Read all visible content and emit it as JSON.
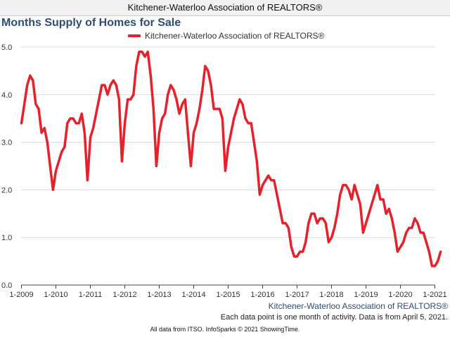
{
  "header": {
    "title": "Kitchener-Waterloo Association of REALTORS®"
  },
  "chart_data": {
    "type": "line",
    "title": "Months Supply of Homes for Sale",
    "xlabel": "",
    "ylabel": "",
    "ylim": [
      0,
      5
    ],
    "yticks": [
      "0.0",
      "1.0",
      "2.0",
      "3.0",
      "4.0",
      "5.0"
    ],
    "xticks": [
      "1-2009",
      "1-2010",
      "1-2011",
      "1-2012",
      "1-2013",
      "1-2014",
      "1-2015",
      "1-2016",
      "1-2017",
      "1-2018",
      "1-2019",
      "1-2020",
      "1-2021"
    ],
    "x_start": "1-2009",
    "x_end": "3-2021",
    "grid": "horizontal",
    "legend": "top-center",
    "series": [
      {
        "name": "Kitchener-Waterloo Association of REALTORS®",
        "color": "#e8202a",
        "values": [
          3.4,
          3.8,
          4.2,
          4.4,
          4.3,
          3.8,
          3.7,
          3.2,
          3.3,
          3.0,
          2.5,
          2.0,
          2.4,
          2.6,
          2.8,
          2.9,
          3.4,
          3.5,
          3.5,
          3.4,
          3.4,
          3.6,
          3.2,
          2.2,
          3.1,
          3.3,
          3.6,
          3.9,
          4.2,
          4.2,
          4.0,
          4.2,
          4.3,
          4.2,
          3.9,
          2.6,
          3.4,
          3.9,
          3.9,
          4.0,
          4.6,
          4.9,
          4.9,
          4.8,
          4.9,
          4.4,
          3.7,
          2.5,
          3.2,
          3.5,
          3.6,
          4.0,
          4.2,
          4.1,
          3.9,
          3.6,
          3.8,
          3.9,
          3.2,
          2.5,
          3.2,
          3.4,
          3.7,
          4.1,
          4.6,
          4.5,
          4.2,
          3.7,
          3.7,
          3.7,
          3.5,
          2.4,
          2.9,
          3.2,
          3.5,
          3.7,
          3.9,
          3.8,
          3.5,
          3.4,
          3.4,
          3.0,
          2.6,
          1.9,
          2.1,
          2.2,
          2.3,
          2.2,
          2.2,
          1.9,
          1.6,
          1.3,
          1.3,
          1.2,
          0.8,
          0.6,
          0.6,
          0.7,
          0.7,
          0.9,
          1.3,
          1.5,
          1.5,
          1.3,
          1.4,
          1.4,
          1.3,
          0.9,
          1.0,
          1.2,
          1.5,
          1.9,
          2.1,
          2.1,
          2.0,
          1.8,
          2.1,
          1.9,
          1.7,
          1.1,
          1.3,
          1.5,
          1.7,
          1.9,
          2.1,
          1.8,
          1.8,
          1.5,
          1.6,
          1.4,
          1.1,
          0.7,
          0.8,
          0.9,
          1.1,
          1.2,
          1.2,
          1.4,
          1.3,
          1.1,
          1.1,
          0.9,
          0.7,
          0.4,
          0.4,
          0.5,
          0.7
        ]
      }
    ]
  },
  "series_source": "Kitchener-Waterloo Association of REALTORS®",
  "data_note": "Each data point is one month of activity. Data is from April 5, 2021.",
  "footer": "All data from ITSO. InfoSparks © 2021 ShowingTime."
}
